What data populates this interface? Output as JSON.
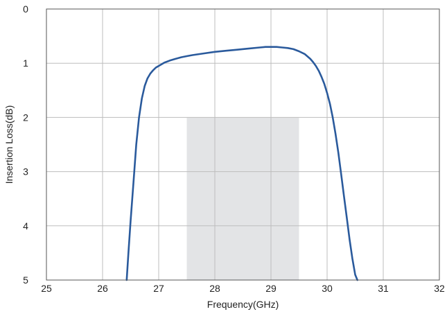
{
  "chart_data": {
    "type": "line",
    "title": "",
    "xlabel": "Frequency(GHz)",
    "ylabel": "Insertion Loss(dB)",
    "xlim": [
      25,
      32
    ],
    "ylim": [
      0,
      5
    ],
    "y_inverted": true,
    "x_ticks": [
      25,
      26,
      27,
      28,
      29,
      30,
      31,
      32
    ],
    "y_ticks": [
      0,
      1,
      2,
      3,
      4,
      5
    ],
    "x_tick_labels": [
      "25",
      "26",
      "27",
      "28",
      "29",
      "30",
      "31",
      "32"
    ],
    "y_tick_labels": [
      "0",
      "1",
      "2",
      "3",
      "4",
      "5"
    ],
    "grid": true,
    "legend": "none",
    "shaded_band": {
      "x": [
        27.5,
        29.5
      ],
      "y": [
        2,
        5
      ],
      "color": "#e3e4e6"
    },
    "line_color": "#2a5a9c",
    "series": [
      {
        "x": [
          26.43,
          26.46,
          26.5,
          26.55,
          26.6,
          26.65,
          26.7,
          26.75,
          26.8,
          26.85,
          26.9,
          26.95,
          27.0,
          27.05,
          27.1,
          27.2,
          27.3,
          27.4,
          27.5,
          27.6,
          27.8,
          28.0,
          28.2,
          28.4,
          28.6,
          28.8,
          28.9,
          29.0,
          29.1,
          29.2,
          29.3,
          29.4,
          29.5,
          29.6,
          29.7,
          29.75,
          29.8,
          29.85,
          29.9,
          29.95,
          30.0,
          30.05,
          30.1,
          30.15,
          30.2,
          30.25,
          30.3,
          30.35,
          30.4,
          30.45,
          30.5,
          30.54
        ],
        "y": [
          5.0,
          4.5,
          3.9,
          3.2,
          2.5,
          2.0,
          1.65,
          1.42,
          1.28,
          1.19,
          1.13,
          1.08,
          1.05,
          1.02,
          0.99,
          0.95,
          0.92,
          0.89,
          0.87,
          0.85,
          0.82,
          0.79,
          0.77,
          0.75,
          0.73,
          0.71,
          0.7,
          0.7,
          0.7,
          0.71,
          0.72,
          0.74,
          0.78,
          0.83,
          0.92,
          0.98,
          1.05,
          1.14,
          1.25,
          1.38,
          1.55,
          1.75,
          2.0,
          2.3,
          2.65,
          3.05,
          3.45,
          3.85,
          4.25,
          4.6,
          4.9,
          5.0
        ]
      }
    ]
  }
}
